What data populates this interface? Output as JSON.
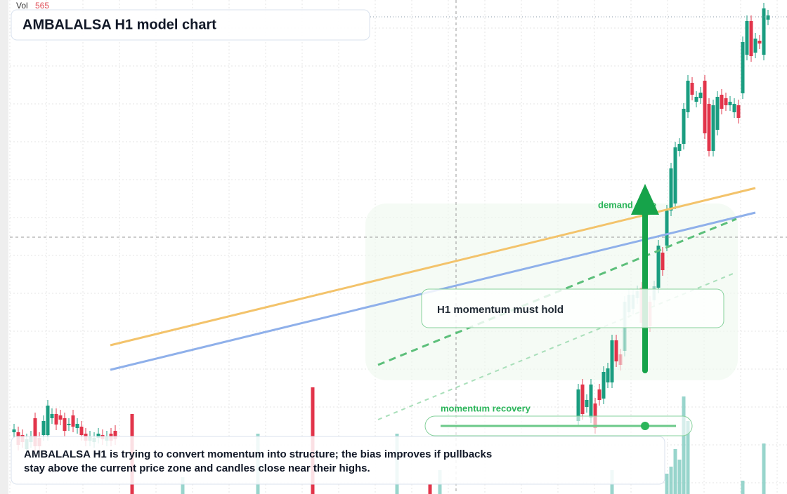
{
  "volume": {
    "label": "Vol",
    "value": "565"
  },
  "header": {
    "title": "AMBALALSA H1 model chart"
  },
  "annotations": {
    "zone": "demand zone",
    "callout": "H1 momentum must hold",
    "recovery": "momentum recovery"
  },
  "summary": {
    "lines": [
      "AMBALALSA H1 is trying to convert momentum into structure; the bias improves if pullbacks",
      "stay above the current price zone and candles close near their highs."
    ]
  }
}
